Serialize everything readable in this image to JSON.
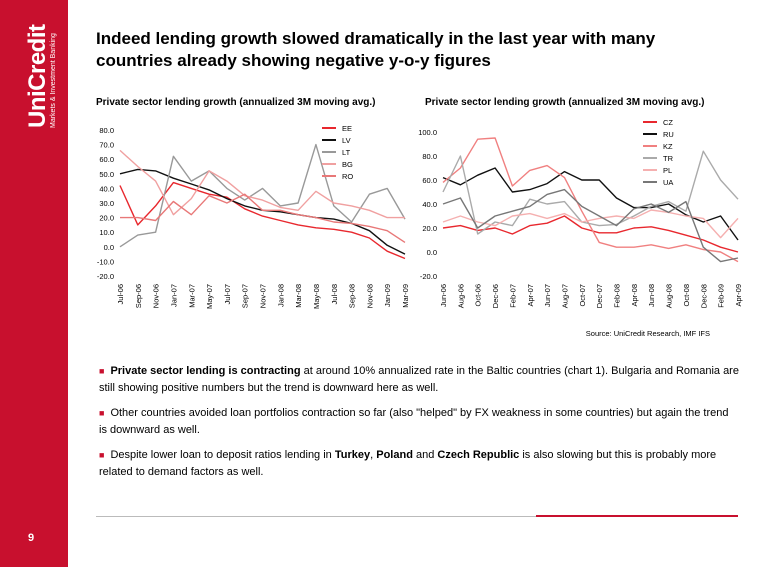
{
  "brand": {
    "name": "UniCredit",
    "tagline": "Markets & Investment Banking",
    "color": "#c8102e"
  },
  "title": "Indeed lending growth slowed dramatically in the last year with many countries already showing negative y-o-y figures",
  "page_number": "9",
  "source": "Source: UniCredit Research, IMF IFS",
  "bullets": [
    {
      "bold": "Private sector lending is contracting",
      "text": " at around 10% annualized rate in the Baltic countries (chart 1). Bulgaria and Romania are still showing positive numbers but the trend is downward here as well."
    },
    {
      "text": "Other countries avoided loan portfolios contraction so far (also \"helped\" by FX weakness in some countries) but again the trend is downward as well."
    },
    {
      "pre": "Despite lower loan to deposit ratios lending in ",
      "b1": "Turkey",
      "mid1": ", ",
      "b2": "Poland",
      "mid2": " and ",
      "b3": "Czech Republic",
      "post": " is also slowing but this is probably more related to demand factors as well."
    }
  ],
  "chart_data": [
    {
      "type": "line",
      "title": "Private sector lending growth (annualized 3M moving avg.)",
      "ylim": [
        -20,
        80
      ],
      "yticks": [
        80,
        70,
        60,
        50,
        40,
        30,
        20,
        10,
        0,
        -10,
        -20
      ],
      "ytick_labels": [
        "80.0",
        "70.0",
        "60.0",
        "50.0",
        "40.0",
        "30.0",
        "20.0",
        "10.0",
        "0.0",
        "-10.0",
        "-20.0"
      ],
      "x": [
        "Jul-06",
        "Sep-06",
        "Nov-06",
        "Jan-07",
        "Mar-07",
        "May-07",
        "Jul-07",
        "Sep-07",
        "Nov-07",
        "Jan-08",
        "Mar-08",
        "May-08",
        "Jul-08",
        "Sep-08",
        "Nov-08",
        "Jan-09",
        "Mar-09"
      ],
      "legend_position": "top-right",
      "grid": false,
      "series": [
        {
          "name": "EE",
          "color": "#e8282e",
          "values": [
            42,
            15,
            28,
            44,
            40,
            36,
            34,
            26,
            21,
            18,
            15,
            13,
            12,
            10,
            6,
            -3,
            -8
          ]
        },
        {
          "name": "LV",
          "color": "#111111",
          "values": [
            50,
            53,
            52,
            47,
            43,
            39,
            33,
            28,
            25,
            24,
            22,
            20,
            19,
            16,
            11,
            1,
            -5
          ]
        },
        {
          "name": "LT",
          "color": "#999999",
          "values": [
            0,
            8,
            10,
            62,
            45,
            52,
            40,
            32,
            40,
            28,
            30,
            70,
            28,
            17,
            36,
            40,
            19
          ]
        },
        {
          "name": "BG",
          "color": "#f0a0a0",
          "values": [
            66,
            55,
            45,
            22,
            33,
            52,
            45,
            35,
            32,
            27,
            25,
            38,
            30,
            28,
            25,
            20,
            20
          ]
        },
        {
          "name": "RO",
          "color": "#e87878",
          "values": [
            20,
            20,
            18,
            31,
            22,
            35,
            30,
            36,
            25,
            25,
            22,
            20,
            17,
            16,
            14,
            11,
            3
          ]
        }
      ]
    },
    {
      "type": "line",
      "title": "Private sector lending growth (annualized 3M moving avg.)",
      "ylim": [
        -20,
        100
      ],
      "yticks": [
        100,
        80,
        60,
        40,
        20,
        0,
        -20
      ],
      "ytick_labels": [
        "100.0",
        "80.0",
        "60.0",
        "40.0",
        "20.0",
        "0.0",
        "-20.0"
      ],
      "x": [
        "Jun-06",
        "Aug-06",
        "Oct-06",
        "Dec-06",
        "Feb-07",
        "Apr-07",
        "Jun-07",
        "Aug-07",
        "Oct-07",
        "Dec-07",
        "Feb-08",
        "Apr-08",
        "Jun-08",
        "Aug-08",
        "Oct-08",
        "Dec-08",
        "Feb-09",
        "Apr-09"
      ],
      "legend_position": "top-right",
      "grid": false,
      "series": [
        {
          "name": "CZ",
          "color": "#e8282e",
          "values": [
            20,
            22,
            18,
            20,
            15,
            22,
            24,
            30,
            20,
            16,
            16,
            20,
            21,
            18,
            14,
            10,
            4,
            0
          ]
        },
        {
          "name": "RU",
          "color": "#111111",
          "values": [
            62,
            56,
            64,
            70,
            50,
            52,
            57,
            67,
            60,
            60,
            45,
            37,
            37,
            40,
            31,
            25,
            30,
            10
          ]
        },
        {
          "name": "KZ",
          "color": "#f08080",
          "values": [
            58,
            70,
            94,
            95,
            55,
            68,
            72,
            62,
            34,
            8,
            4,
            4,
            6,
            3,
            6,
            2,
            0,
            -8
          ]
        },
        {
          "name": "TR",
          "color": "#aaaaaa",
          "values": [
            50,
            80,
            15,
            25,
            22,
            44,
            40,
            42,
            25,
            22,
            23,
            30,
            38,
            42,
            34,
            84,
            60,
            44
          ]
        },
        {
          "name": "PL",
          "color": "#f5b0b0",
          "values": [
            25,
            30,
            25,
            22,
            30,
            32,
            28,
            32,
            25,
            28,
            30,
            28,
            35,
            33,
            30,
            28,
            12,
            28
          ]
        },
        {
          "name": "UA",
          "color": "#777777",
          "values": [
            40,
            45,
            20,
            30,
            34,
            38,
            48,
            52,
            38,
            30,
            22,
            36,
            40,
            33,
            42,
            4,
            -8,
            -5
          ]
        }
      ]
    }
  ]
}
